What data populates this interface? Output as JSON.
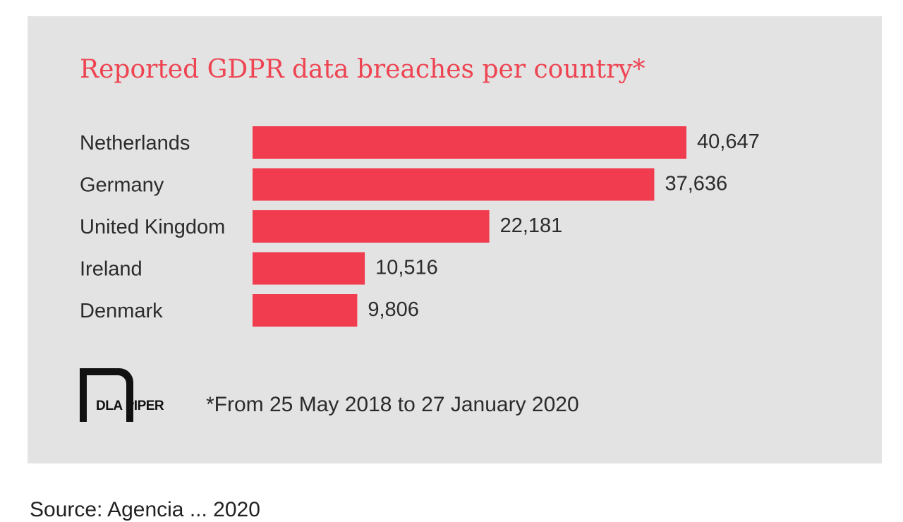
{
  "chart_data": {
    "type": "bar",
    "orientation": "horizontal",
    "title": "Reported GDPR data breaches per country*",
    "categories": [
      "Netherlands",
      "Germany",
      "United Kingdom",
      "Ireland",
      "Denmark"
    ],
    "values": [
      40647,
      37636,
      22181,
      10516,
      9806
    ],
    "value_labels": [
      "40,647",
      "37,636",
      "22,181",
      "10,516",
      "9,806"
    ],
    "xlabel": "",
    "ylabel": "",
    "xlim": [
      0,
      40647
    ],
    "grid": false,
    "bar_color": "#f03c4e"
  },
  "footnote": "*From 25 May 2018 to 27 January 2020",
  "logo": {
    "text": "DLA PIPER"
  },
  "source_line": "Source: Agencia ... 2020"
}
